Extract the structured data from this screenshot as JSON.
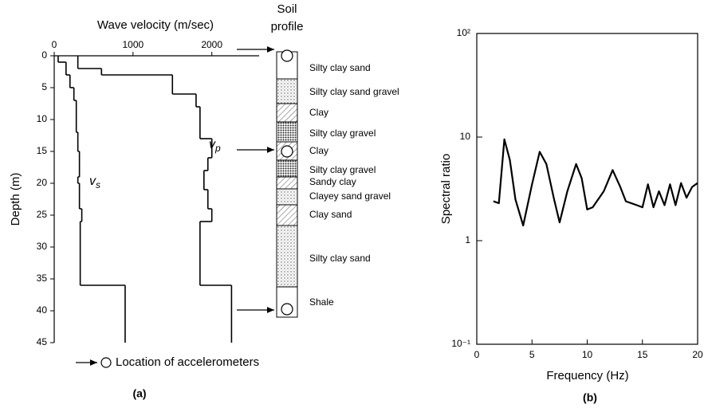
{
  "chart_data": [
    {
      "type": "profile",
      "title": "Wave velocity (m/sec)",
      "y_label": "Depth (m)",
      "xlim": [
        0,
        2600
      ],
      "xticks": [
        0,
        1000,
        2000
      ],
      "ylim": [
        0,
        45
      ],
      "yticks": [
        0,
        5,
        10,
        15,
        20,
        25,
        30,
        35,
        40,
        45
      ],
      "color": "#000000",
      "series": [
        {
          "symbol": "v",
          "subscript": "s",
          "depth_bins": [
            0,
            1,
            3,
            5,
            7,
            12,
            15,
            19,
            20,
            24,
            26,
            36,
            45
          ],
          "values": [
            50,
            150,
            200,
            250,
            280,
            300,
            320,
            300,
            320,
            350,
            330,
            900
          ]
        },
        {
          "symbol": "v",
          "subscript": "p",
          "depth_bins": [
            0,
            2,
            3,
            6,
            8,
            13,
            16,
            18,
            21,
            24,
            26,
            36,
            45
          ],
          "values": [
            300,
            600,
            1500,
            1800,
            1850,
            2000,
            1950,
            1900,
            1950,
            2000,
            1850,
            2250
          ]
        }
      ],
      "soil_profile": {
        "title": [
          "Soil",
          "profile"
        ],
        "layers": [
          "Silty clay sand",
          "Silty clay sand gravel",
          "Clay",
          "Silty clay gravel",
          "Clay",
          "Silty clay gravel",
          "Sandy clay",
          "Clayey sand gravel",
          "Clay sand",
          "Silty clay sand",
          "Shale"
        ]
      },
      "legend": "Location of accelerometers",
      "panel_label": "(a)"
    },
    {
      "type": "line",
      "x_label": "Frequency (Hz)",
      "y_label": "Spectral ratio",
      "log_y": true,
      "color": "#000000",
      "xlim": [
        0,
        20
      ],
      "xticks": [
        0,
        5,
        10,
        15,
        20
      ],
      "ylim": [
        0.1,
        100
      ],
      "yticks": [
        {
          "value": 0.1,
          "label": "10⁻¹"
        },
        1,
        10,
        {
          "value": 100,
          "label": "10²"
        }
      ],
      "x": [
        1.5,
        2.0,
        2.5,
        3.0,
        3.5,
        4.2,
        5.0,
        5.7,
        6.3,
        7.0,
        7.5,
        8.2,
        9.0,
        9.5,
        10.0,
        10.5,
        11.5,
        12.3,
        13.0,
        13.5,
        14.5,
        15.0,
        15.5,
        16.0,
        16.5,
        17.0,
        17.5,
        18.0,
        18.5,
        19.0,
        19.5,
        20.0
      ],
      "values": [
        2.4,
        2.3,
        9.5,
        6,
        2.5,
        1.4,
        3.5,
        7.2,
        5.5,
        2.5,
        1.5,
        3,
        5.5,
        4,
        2.0,
        2.1,
        3,
        4.8,
        3.3,
        2.4,
        2.2,
        2.1,
        3.5,
        2.1,
        3.0,
        2.2,
        3.5,
        2.2,
        3.6,
        2.6,
        3.3,
        3.6
      ],
      "panel_label": "(b)"
    }
  ]
}
